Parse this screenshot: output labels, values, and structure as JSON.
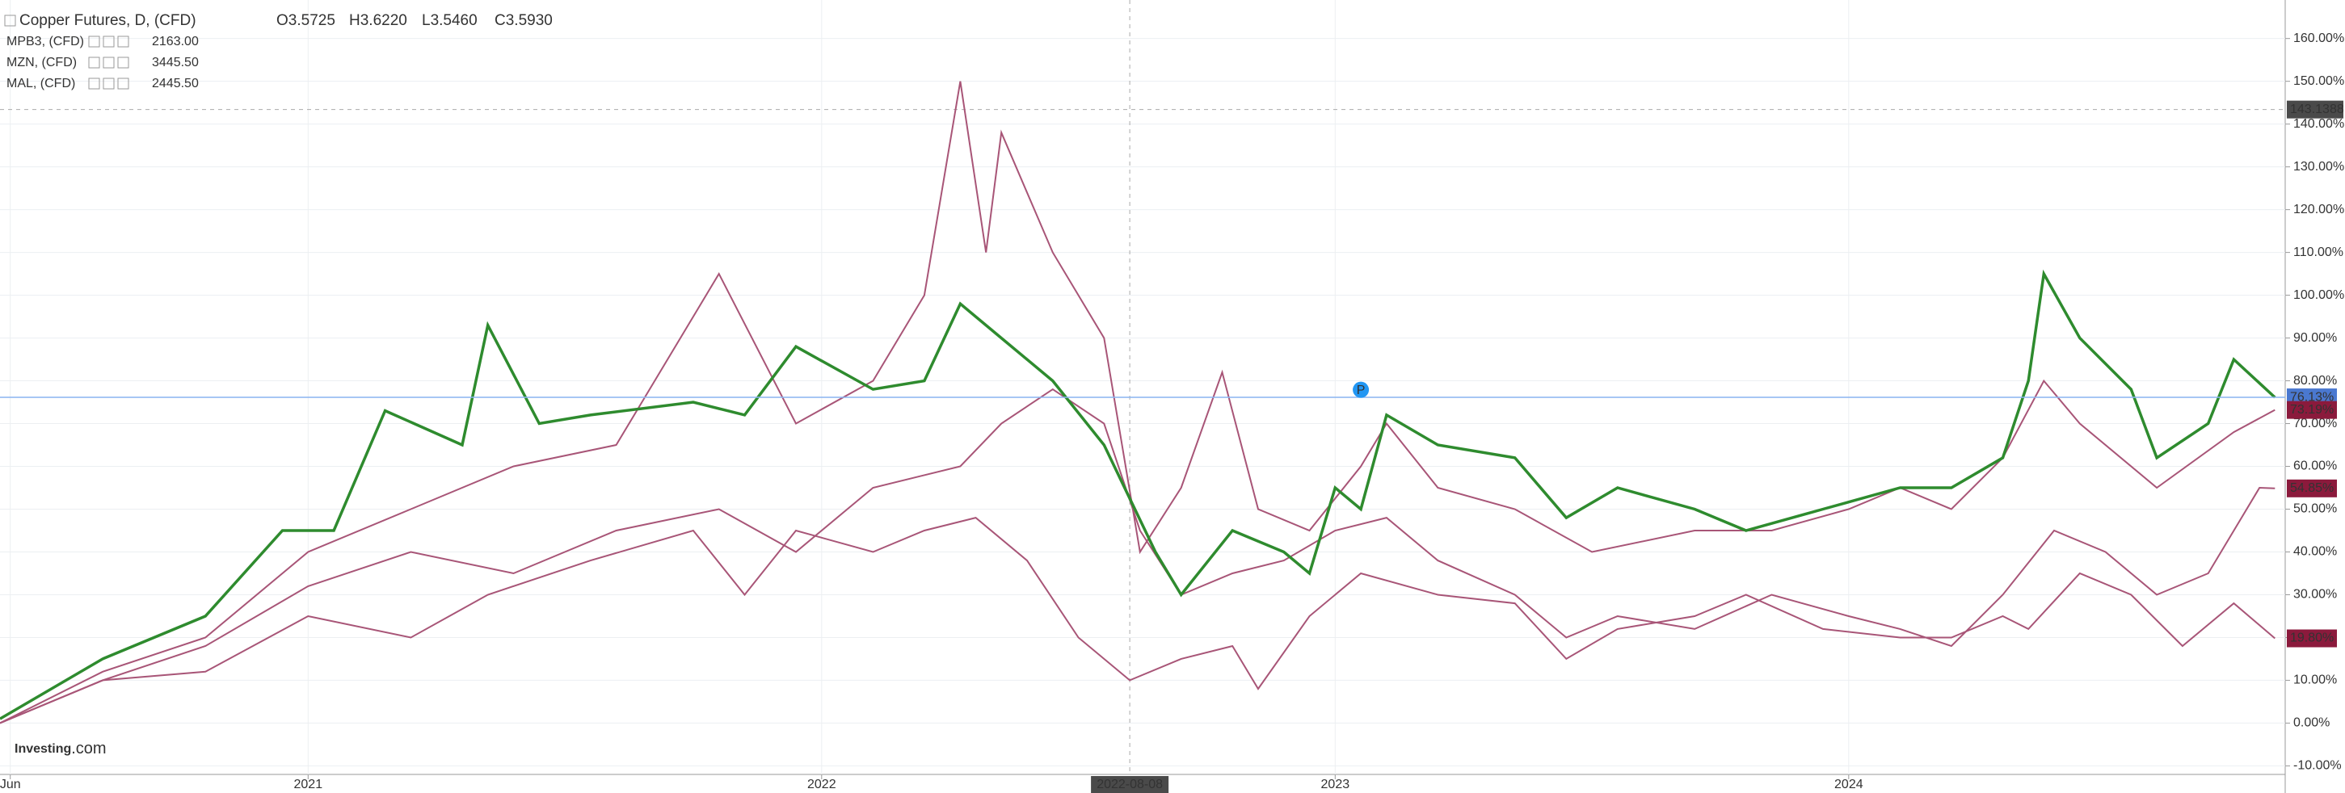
{
  "chart_data": {
    "type": "line",
    "header": {
      "ohlc": [
        "O3.5725",
        "H3.6220",
        "L3.5460",
        "C3.5930"
      ]
    },
    "series": [
      {
        "name": "Copper Futures, D, (CFD)",
        "color": "#2e8b2e",
        "badge_color": "#4a78d0",
        "x": [
          2020.4,
          2020.6,
          2020.8,
          2020.95,
          2021.05,
          2021.15,
          2021.3,
          2021.35,
          2021.45,
          2021.55,
          2021.75,
          2021.85,
          2021.95,
          2022.1,
          2022.2,
          2022.27,
          2022.35,
          2022.45,
          2022.55,
          2022.65,
          2022.7,
          2022.8,
          2022.9,
          2022.95,
          2023.0,
          2023.05,
          2023.1,
          2023.2,
          2023.35,
          2023.45,
          2023.55,
          2023.7,
          2023.8,
          2023.95,
          2024.1,
          2024.2,
          2024.3,
          2024.35,
          2024.38,
          2024.45,
          2024.55,
          2024.6,
          2024.7,
          2024.75,
          2024.83
        ],
        "values": [
          1,
          15,
          25,
          45,
          45,
          73,
          65,
          93,
          70,
          72,
          75,
          72,
          88,
          78,
          80,
          98,
          90,
          80,
          65,
          40,
          30,
          45,
          40,
          35,
          55,
          50,
          72,
          65,
          62,
          48,
          55,
          50,
          45,
          50,
          55,
          55,
          62,
          80,
          105,
          90,
          78,
          62,
          70,
          85,
          76.13
        ],
        "value_labels": {
          "44": "76.13%"
        }
      },
      {
        "name": "MPB3, (CFD)",
        "last": "2163.00",
        "color": "#a85577",
        "badge_color": "#8b1a3c",
        "x": [
          2020.4,
          2020.6,
          2020.8,
          2021.0,
          2021.2,
          2021.4,
          2021.6,
          2021.8,
          2021.95,
          2022.1,
          2022.2,
          2022.27,
          2022.32,
          2022.35,
          2022.45,
          2022.55,
          2022.62,
          2022.7,
          2022.78,
          2022.85,
          2022.95,
          2023.05,
          2023.1,
          2023.2,
          2023.35,
          2023.5,
          2023.7,
          2023.85,
          2024.0,
          2024.1,
          2024.2,
          2024.3,
          2024.38,
          2024.45,
          2024.6,
          2024.75,
          2024.83
        ],
        "values": [
          0,
          12,
          20,
          40,
          50,
          60,
          65,
          105,
          70,
          80,
          100,
          150,
          110,
          138,
          110,
          90,
          40,
          55,
          82,
          50,
          45,
          60,
          70,
          55,
          50,
          40,
          45,
          45,
          50,
          55,
          50,
          62,
          80,
          70,
          55,
          68,
          73.19
        ],
        "value_labels": {
          "36": "73.19%"
        }
      },
      {
        "name": "MZN, (CFD)",
        "last": "3445.50",
        "color": "#a85577",
        "badge_color": "#8b1a3c",
        "x": [
          2020.4,
          2020.6,
          2020.8,
          2021.0,
          2021.2,
          2021.4,
          2021.6,
          2021.8,
          2021.95,
          2022.1,
          2022.27,
          2022.35,
          2022.45,
          2022.55,
          2022.62,
          2022.7,
          2022.8,
          2022.9,
          2023.0,
          2023.1,
          2023.2,
          2023.35,
          2023.45,
          2023.55,
          2023.7,
          2023.85,
          2024.0,
          2024.1,
          2024.2,
          2024.3,
          2024.4,
          2024.5,
          2024.6,
          2024.7,
          2024.8,
          2024.83
        ],
        "values": [
          0,
          10,
          18,
          32,
          40,
          35,
          45,
          50,
          40,
          55,
          60,
          70,
          78,
          70,
          45,
          30,
          35,
          38,
          45,
          48,
          38,
          30,
          20,
          25,
          22,
          30,
          25,
          22,
          18,
          30,
          45,
          40,
          30,
          35,
          55,
          54.85
        ],
        "value_labels": {
          "35": "54.85%"
        }
      },
      {
        "name": "MAL, (CFD)",
        "last": "2445.50",
        "color": "#a85577",
        "badge_color": "#8b1a3c",
        "x": [
          2020.4,
          2020.6,
          2020.8,
          2021.0,
          2021.2,
          2021.35,
          2021.55,
          2021.75,
          2021.85,
          2021.95,
          2022.1,
          2022.2,
          2022.3,
          2022.4,
          2022.5,
          2022.6,
          2022.7,
          2022.8,
          2022.85,
          2022.95,
          2023.05,
          2023.2,
          2023.35,
          2023.45,
          2023.55,
          2023.7,
          2023.8,
          2023.95,
          2024.1,
          2024.2,
          2024.3,
          2024.35,
          2024.45,
          2024.55,
          2024.65,
          2024.75,
          2024.83
        ],
        "values": [
          0,
          10,
          12,
          25,
          20,
          30,
          38,
          45,
          30,
          45,
          40,
          45,
          48,
          38,
          20,
          10,
          15,
          18,
          8,
          25,
          35,
          30,
          28,
          15,
          22,
          25,
          30,
          22,
          20,
          20,
          25,
          22,
          35,
          30,
          18,
          28,
          19.8
        ],
        "value_labels": {
          "36": "19.80%"
        }
      }
    ],
    "xlim": [
      2020.4,
      2024.85
    ],
    "xticks": [
      {
        "value": 2020.42,
        "label": "Jun"
      },
      2021,
      2022,
      2023,
      2024
    ],
    "ylim": [
      -12,
      169
    ],
    "yticks": [
      {
        "value": 160,
        "label": "160.00%"
      },
      {
        "value": 150,
        "label": "150.00%"
      },
      {
        "value": 140,
        "label": "140.00%"
      },
      {
        "value": 130,
        "label": "130.00%"
      },
      {
        "value": 120,
        "label": "120.00%"
      },
      {
        "value": 110,
        "label": "110.00%"
      },
      {
        "value": 100,
        "label": "100.00%"
      },
      {
        "value": 90,
        "label": "90.00%"
      },
      {
        "value": 80,
        "label": "80.00%"
      },
      {
        "value": 70,
        "label": "70.00%"
      },
      {
        "value": 60,
        "label": "60.00%"
      },
      {
        "value": 50,
        "label": "50.00%"
      },
      {
        "value": 40,
        "label": "40.00%"
      },
      {
        "value": 30,
        "label": "30.00%"
      },
      {
        "value": 20,
        "label": "20.00%"
      },
      {
        "value": 10,
        "label": "10.00%"
      },
      {
        "value": 0,
        "label": "0.00%"
      },
      {
        "value": -10,
        "label": "-10.00%"
      }
    ],
    "grid": true,
    "crosshair": {
      "x": 2022.6,
      "x_label": "2022-08-08",
      "y": 143.4,
      "y_label": "143.1388"
    },
    "marker": {
      "x": 2023.05,
      "y": 73,
      "label": "P"
    },
    "logo": {
      "brand": "Investing",
      ".com": ".com"
    }
  }
}
